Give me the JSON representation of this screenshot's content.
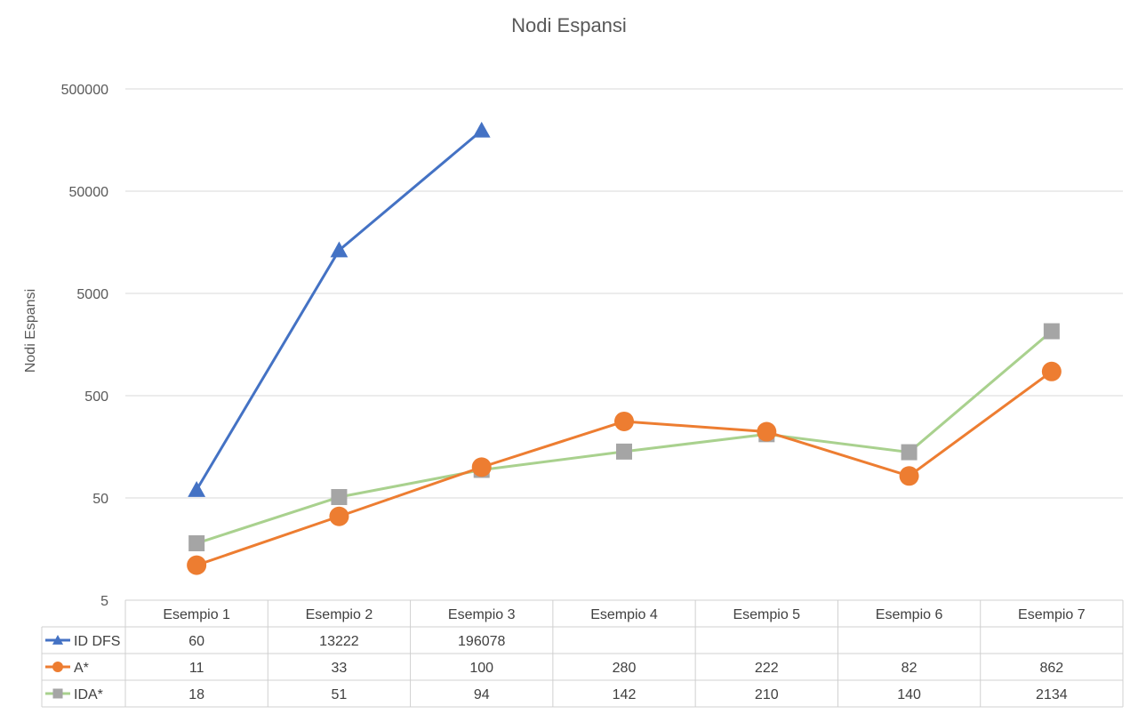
{
  "chart_data": {
    "type": "line",
    "title": "Nodi Espansi",
    "ylabel": "Nodi Espansi",
    "xlabel": "",
    "y_scale": "log",
    "ylim": [
      5,
      500000
    ],
    "y_ticks": [
      "5",
      "50",
      "500",
      "5000",
      "50000",
      "500000"
    ],
    "grid": true,
    "legend": "data-table-below",
    "categories": [
      "Esempio 1",
      "Esempio 2",
      "Esempio 3",
      "Esempio 4",
      "Esempio 5",
      "Esempio 6",
      "Esempio 7"
    ],
    "series": [
      {
        "name": "ID DFS",
        "values": [
          60,
          13222,
          196078,
          null,
          null,
          null,
          null
        ],
        "color": "#4472c4",
        "marker": "triangle"
      },
      {
        "name": "A*",
        "values": [
          11,
          33,
          100,
          280,
          222,
          82,
          862
        ],
        "color": "#ed7d31",
        "marker": "circle"
      },
      {
        "name": "IDA*",
        "values": [
          18,
          51,
          94,
          142,
          210,
          140,
          2134
        ],
        "color": "#a5a5a5",
        "line_color": "#a9d18e",
        "marker": "square"
      }
    ]
  }
}
